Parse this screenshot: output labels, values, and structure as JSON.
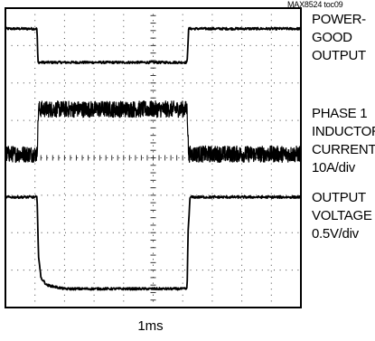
{
  "figure_tag": "MAX8524 toc09",
  "timebase_label": "1ms",
  "channel_labels": [
    {
      "id": "power-good",
      "text": "POWER-\nGOOD\nOUTPUT"
    },
    {
      "id": "phase1-current",
      "text": "PHASE 1\nINDUCTOR\nCURRENT\n10A/div"
    },
    {
      "id": "output-voltage",
      "text": "OUTPUT\nVOLTAGE\n0.5V/div"
    }
  ],
  "chart_data": {
    "type": "line",
    "title": "",
    "grid": true,
    "divisions": {
      "x": 10,
      "y": 8
    },
    "x_unit": "ms",
    "x_per_div": 1,
    "x_range": [
      0,
      10
    ],
    "series": [
      {
        "name": "POWER-GOOD OUTPUT",
        "x": [
          0,
          1.07,
          1.1,
          6.15,
          6.2,
          10
        ],
        "y": [
          3.45,
          3.45,
          2.55,
          2.55,
          3.45,
          3.45
        ],
        "noise": 0.03
      },
      {
        "name": "PHASE 1 INDUCTOR CURRENT",
        "scale_label": "10A/div",
        "x": [
          0,
          1.07,
          1.12,
          6.15,
          6.2,
          10
        ],
        "y": [
          0.1,
          0.1,
          1.3,
          1.3,
          0.1,
          0.1
        ],
        "noise": 0.22
      },
      {
        "name": "OUTPUT VOLTAGE",
        "scale_label": "0.5V/div",
        "x": [
          0,
          1.07,
          1.12,
          1.2,
          1.4,
          2.0,
          6.15,
          6.18,
          6.25,
          10
        ],
        "y": [
          -1.05,
          -1.05,
          -2.6,
          -3.2,
          -3.4,
          -3.5,
          -3.5,
          -2.0,
          -1.05,
          -1.05
        ],
        "noise": 0.03
      }
    ]
  }
}
